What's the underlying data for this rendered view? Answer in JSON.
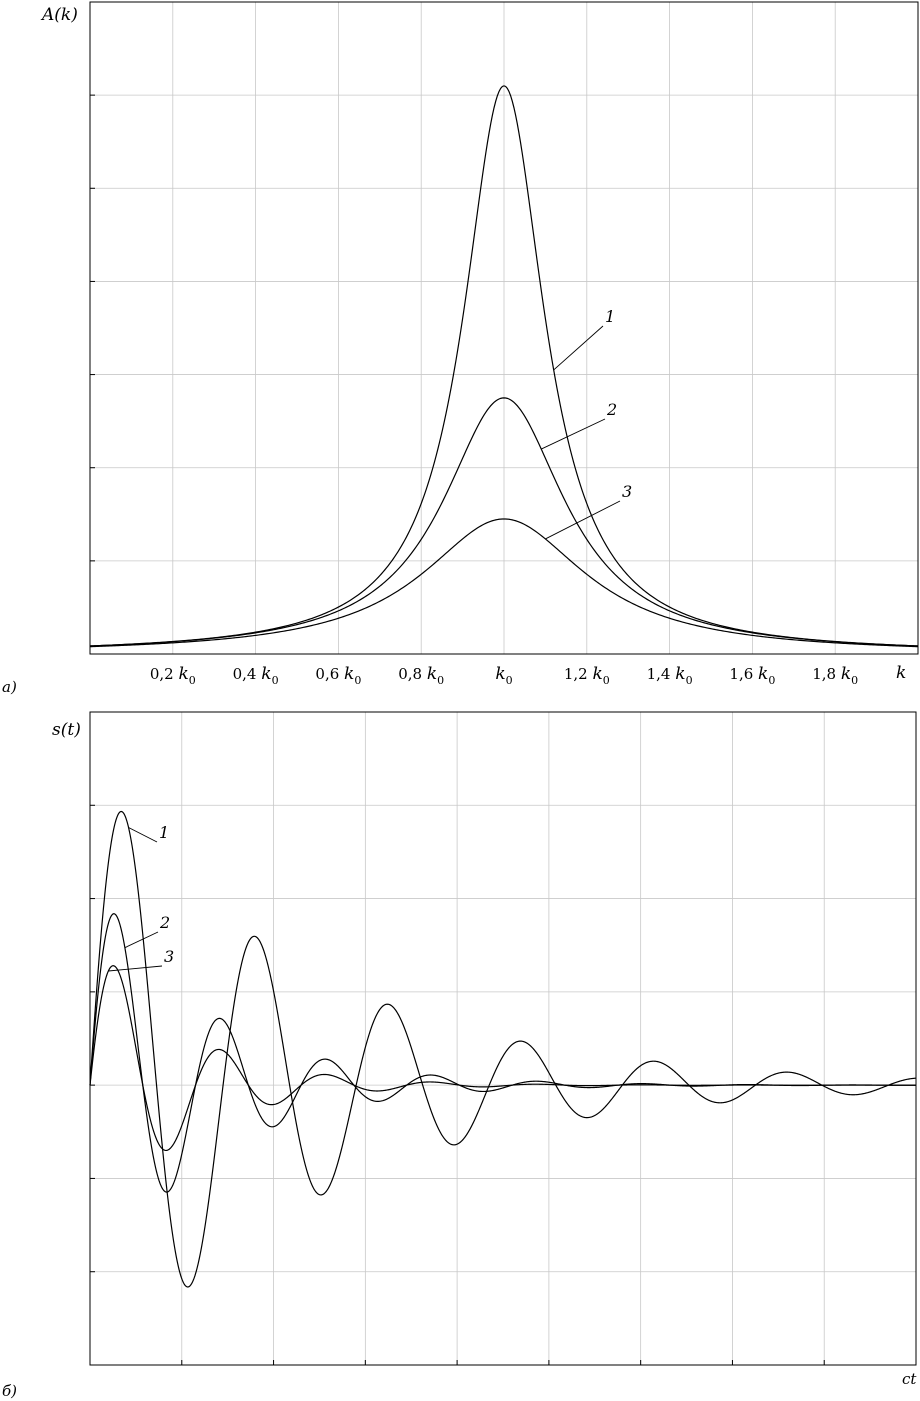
{
  "chart_data": [
    {
      "panel_label": "а)",
      "type": "line",
      "ylabel": "A(k)",
      "xlabel": "k",
      "xlim": [
        0,
        2
      ],
      "ylim": [
        0,
        7
      ],
      "x_ticks": [
        {
          "value": 0.2,
          "coef": "0,2",
          "symbol": "k",
          "sub": "0"
        },
        {
          "value": 0.4,
          "coef": "0,4",
          "symbol": "k",
          "sub": "0"
        },
        {
          "value": 0.6,
          "coef": "0,6",
          "symbol": "k",
          "sub": "0"
        },
        {
          "value": 0.8,
          "coef": "0,8",
          "symbol": "k",
          "sub": "0"
        },
        {
          "value": 1.0,
          "coef": "",
          "symbol": "k",
          "sub": "0"
        },
        {
          "value": 1.2,
          "coef": "1,2",
          "symbol": "k",
          "sub": "0"
        },
        {
          "value": 1.4,
          "coef": "1,4",
          "symbol": "k",
          "sub": "0"
        },
        {
          "value": 1.6,
          "coef": "1,6",
          "symbol": "k",
          "sub": "0"
        },
        {
          "value": 1.8,
          "coef": "1,8",
          "symbol": "k",
          "sub": "0"
        }
      ],
      "grid": true,
      "series": [
        {
          "name": "1",
          "peak_x": 1.0,
          "peak_y": 6.1,
          "half_width": 0.12
        },
        {
          "name": "2",
          "peak_x": 1.0,
          "peak_y": 2.75,
          "half_width": 0.18
        },
        {
          "name": "3",
          "peak_x": 1.0,
          "peak_y": 1.45,
          "half_width": 0.24
        }
      ]
    },
    {
      "panel_label": "б)",
      "type": "line",
      "ylabel": "s(t)",
      "xlabel": "ct",
      "xlim": [
        0,
        9
      ],
      "ylim": [
        -3,
        4
      ],
      "grid": true,
      "series": [
        {
          "name": "1",
          "period": 1.45,
          "amplitude": 3.4,
          "decay": 0.42
        },
        {
          "name": "2",
          "period": 1.15,
          "amplitude": 2.3,
          "decay": 0.82
        },
        {
          "name": "3",
          "period": 1.15,
          "amplitude": 1.7,
          "decay": 1.05
        }
      ]
    }
  ]
}
